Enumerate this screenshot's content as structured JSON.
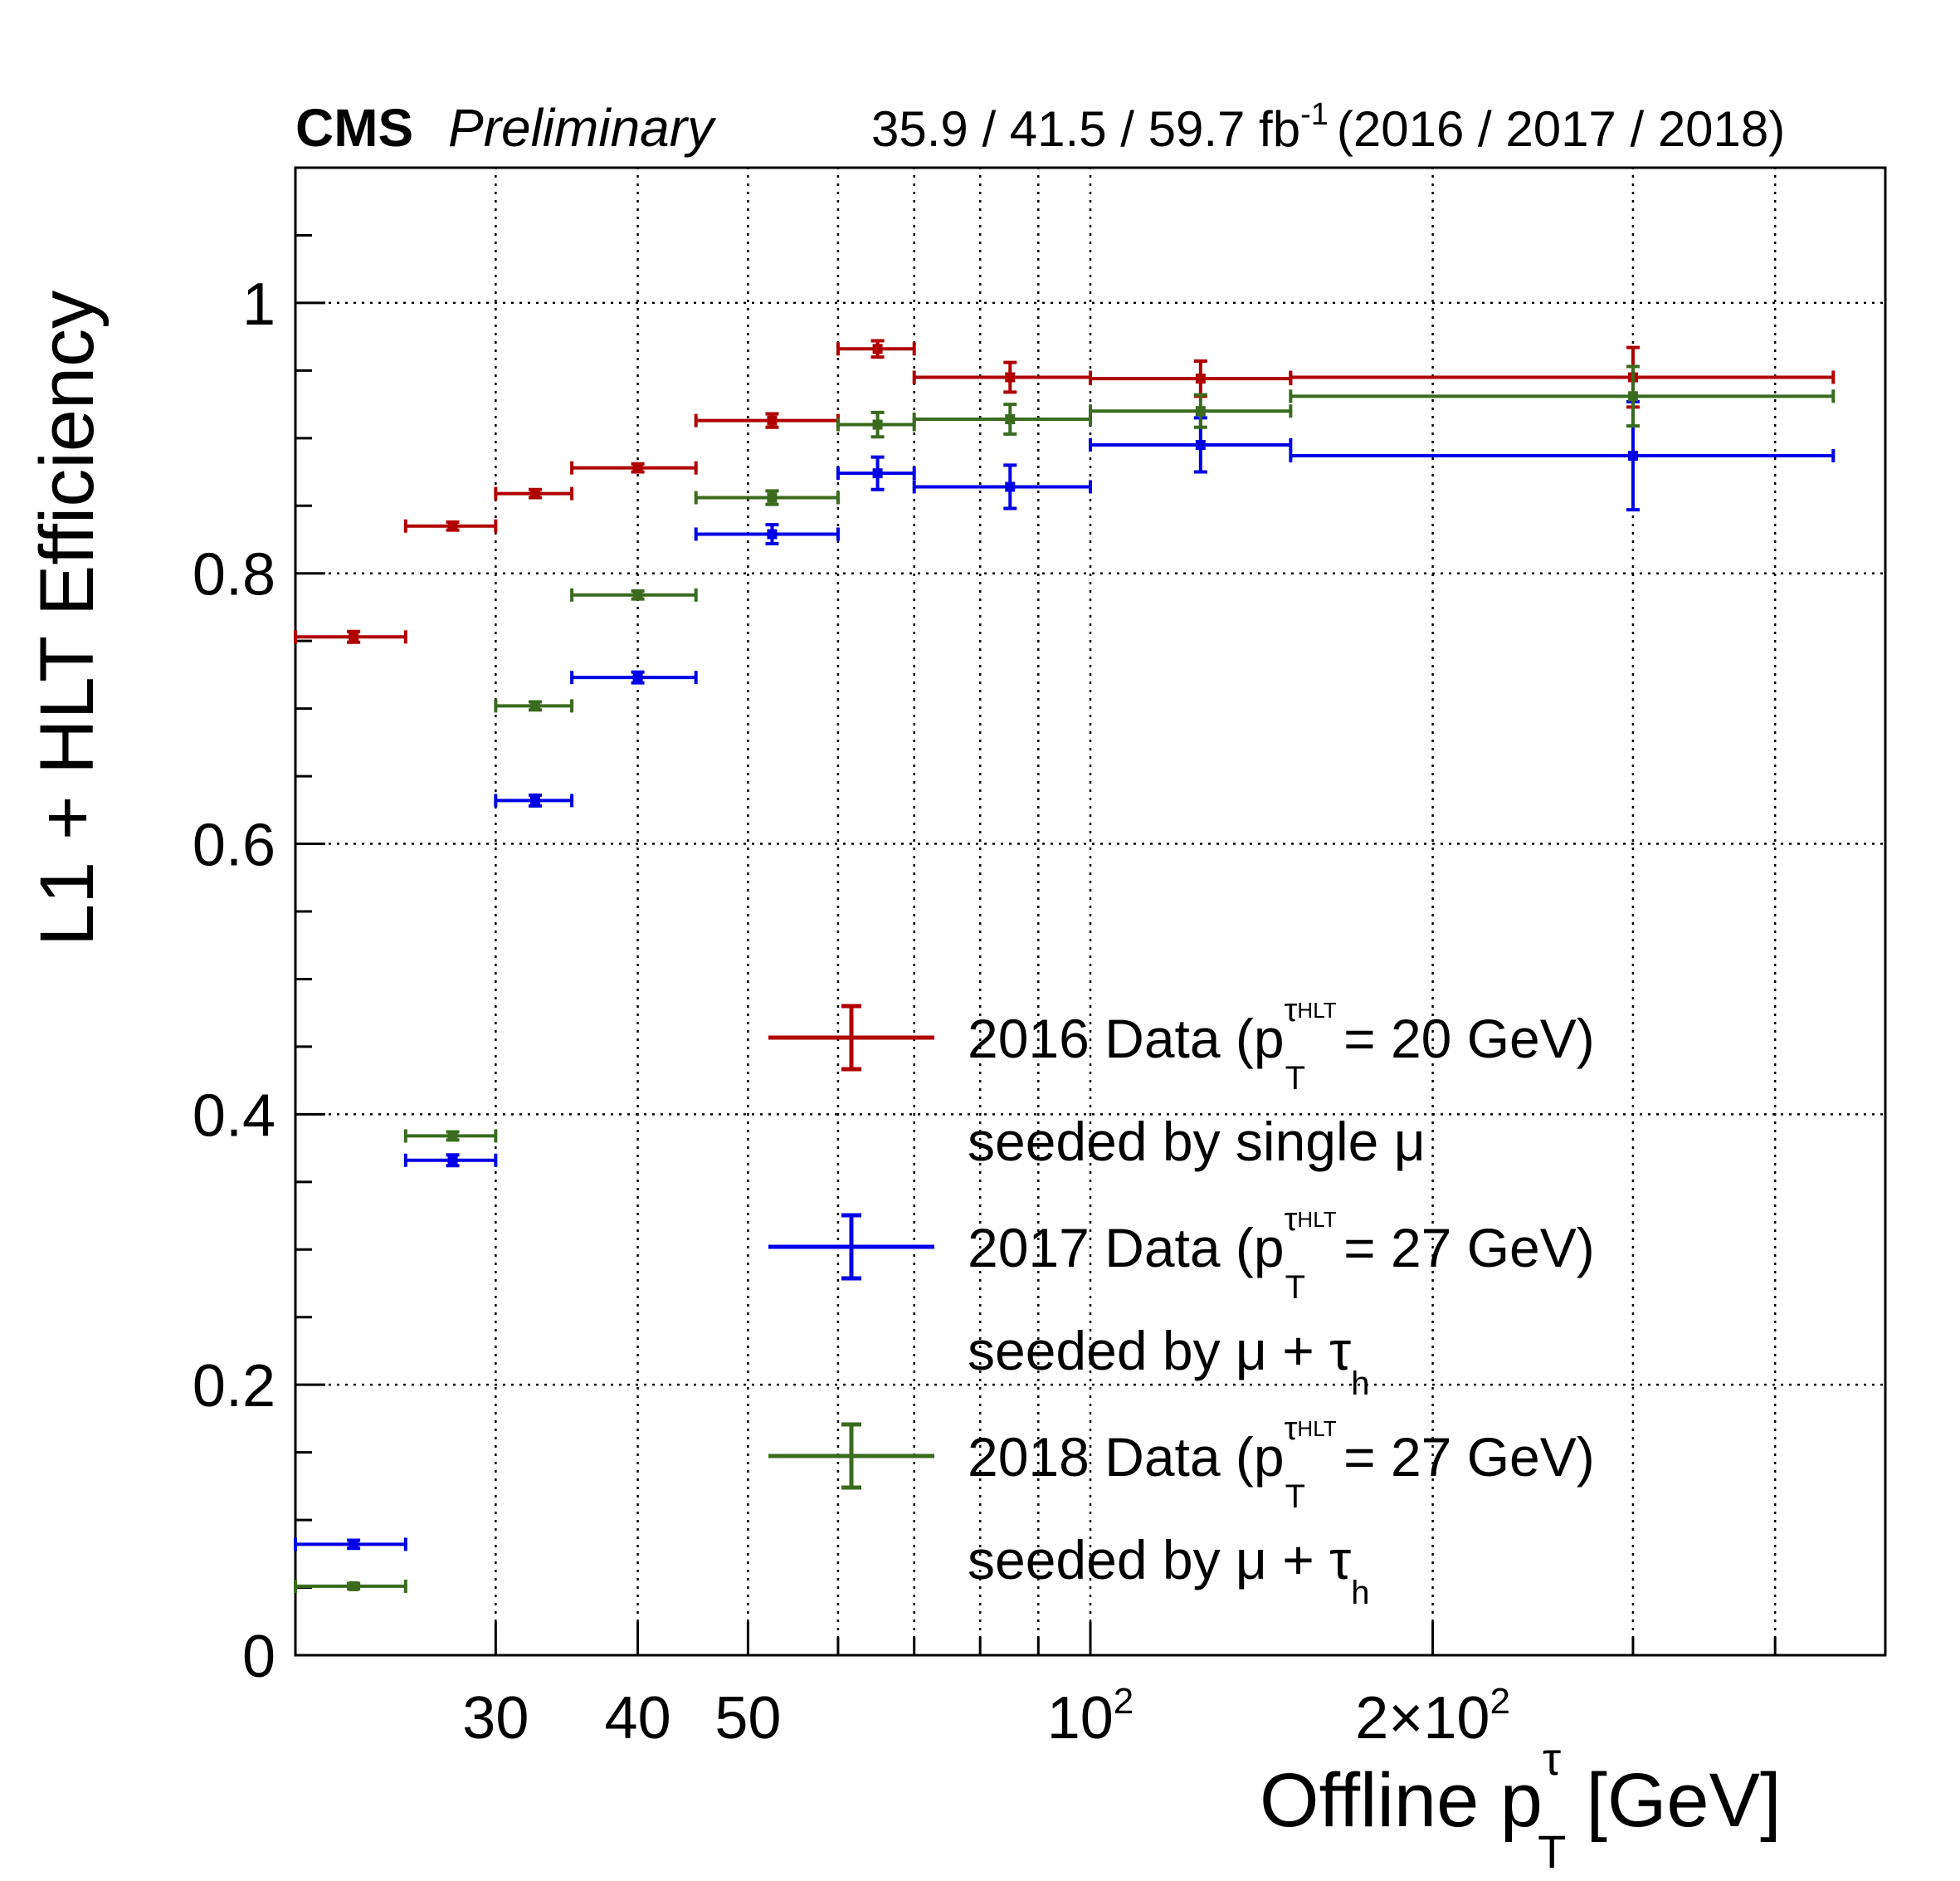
{
  "chart_data": {
    "type": "scatter",
    "header": {
      "experiment": "CMS",
      "status": "Preliminary",
      "lumi_text": "35.9 / 41.5 / 59.7 fb",
      "lumi_exp": "-1",
      "years": "(2016 / 2017 / 2018)"
    },
    "xlabel": {
      "main": "Offline p",
      "sup": "τ",
      "sub": "T",
      "unit": "[GeV]"
    },
    "ylabel": "L1 + HLT Efficiency",
    "xscale": "log",
    "xlim": [
      20,
      500
    ],
    "ylim": [
      0,
      1.1
    ],
    "grid": true,
    "x_ticks": [
      {
        "value": 30,
        "label": "30"
      },
      {
        "value": 40,
        "label": "40"
      },
      {
        "value": 50,
        "label": "50"
      },
      {
        "value": 100,
        "label": "10",
        "exp": "2"
      },
      {
        "value": 200,
        "label": "2×10",
        "exp": "2"
      }
    ],
    "y_ticks": [
      {
        "value": 0,
        "label": "0"
      },
      {
        "value": 0.2,
        "label": "0.2"
      },
      {
        "value": 0.4,
        "label": "0.4"
      },
      {
        "value": 0.6,
        "label": "0.6"
      },
      {
        "value": 0.8,
        "label": "0.8"
      },
      {
        "value": 1.0,
        "label": "1"
      }
    ],
    "legend_position": "bottom-right",
    "series": [
      {
        "color": "#b00000",
        "legend_line1": "2016 Data (p",
        "legend_sup": "τ",
        "legend_supsub": "HLT",
        "legend_sub": "T",
        "legend_rest": "= 20 GeV)",
        "legend_line2": "seeded by single μ",
        "legend_line2_sub": "",
        "points": [
          {
            "x": 22.5,
            "xlo": 20,
            "xhi": 25,
            "y": 0.753,
            "err": 0.004
          },
          {
            "x": 27.5,
            "xlo": 25,
            "xhi": 30,
            "y": 0.835,
            "err": 0.003
          },
          {
            "x": 32.5,
            "xlo": 30,
            "xhi": 35,
            "y": 0.859,
            "err": 0.003
          },
          {
            "x": 40,
            "xlo": 35,
            "xhi": 45,
            "y": 0.878,
            "err": 0.003
          },
          {
            "x": 52.5,
            "xlo": 45,
            "xhi": 60,
            "y": 0.913,
            "err": 0.005
          },
          {
            "x": 65,
            "xlo": 60,
            "xhi": 70,
            "y": 0.966,
            "err": 0.006
          },
          {
            "x": 85,
            "xlo": 70,
            "xhi": 100,
            "y": 0.945,
            "err": 0.011
          },
          {
            "x": 125,
            "xlo": 100,
            "xhi": 150,
            "y": 0.944,
            "err": 0.013
          },
          {
            "x": 300,
            "xlo": 150,
            "xhi": 450,
            "y": 0.945,
            "err": 0.022
          }
        ]
      },
      {
        "color": "#0000e6",
        "legend_line1": "2017 Data (p",
        "legend_sup": "τ",
        "legend_supsub": "HLT",
        "legend_sub": "T",
        "legend_rest": "= 27 GeV)",
        "legend_line2": "seeded by μ + τ",
        "legend_line2_sub": "h",
        "points": [
          {
            "x": 22.5,
            "xlo": 20,
            "xhi": 25,
            "y": 0.082,
            "err": 0.003
          },
          {
            "x": 27.5,
            "xlo": 25,
            "xhi": 30,
            "y": 0.366,
            "err": 0.004
          },
          {
            "x": 32.5,
            "xlo": 30,
            "xhi": 35,
            "y": 0.632,
            "err": 0.004
          },
          {
            "x": 40,
            "xlo": 35,
            "xhi": 45,
            "y": 0.723,
            "err": 0.004
          },
          {
            "x": 52.5,
            "xlo": 45,
            "xhi": 60,
            "y": 0.829,
            "err": 0.007
          },
          {
            "x": 65,
            "xlo": 60,
            "xhi": 70,
            "y": 0.874,
            "err": 0.012
          },
          {
            "x": 85,
            "xlo": 70,
            "xhi": 100,
            "y": 0.864,
            "err": 0.016
          },
          {
            "x": 125,
            "xlo": 100,
            "xhi": 150,
            "y": 0.895,
            "err": 0.02
          },
          {
            "x": 300,
            "xlo": 150,
            "xhi": 450,
            "y": 0.887,
            "err": 0.04
          }
        ]
      },
      {
        "color": "#3a6b1e",
        "legend_line1": "2018 Data (p",
        "legend_sup": "τ",
        "legend_supsub": "HLT",
        "legend_sub": "T",
        "legend_rest": "= 27 GeV)",
        "legend_line2": "seeded by μ + τ",
        "legend_line2_sub": "h",
        "points": [
          {
            "x": 22.5,
            "xlo": 20,
            "xhi": 25,
            "y": 0.051,
            "err": 0.002
          },
          {
            "x": 27.5,
            "xlo": 25,
            "xhi": 30,
            "y": 0.384,
            "err": 0.003
          },
          {
            "x": 32.5,
            "xlo": 30,
            "xhi": 35,
            "y": 0.702,
            "err": 0.003
          },
          {
            "x": 40,
            "xlo": 35,
            "xhi": 45,
            "y": 0.784,
            "err": 0.003
          },
          {
            "x": 52.5,
            "xlo": 45,
            "xhi": 60,
            "y": 0.856,
            "err": 0.005
          },
          {
            "x": 65,
            "xlo": 60,
            "xhi": 70,
            "y": 0.91,
            "err": 0.009
          },
          {
            "x": 85,
            "xlo": 70,
            "xhi": 100,
            "y": 0.914,
            "err": 0.011
          },
          {
            "x": 125,
            "xlo": 100,
            "xhi": 150,
            "y": 0.92,
            "err": 0.012
          },
          {
            "x": 300,
            "xlo": 150,
            "xhi": 450,
            "y": 0.931,
            "err": 0.022
          }
        ]
      }
    ]
  }
}
